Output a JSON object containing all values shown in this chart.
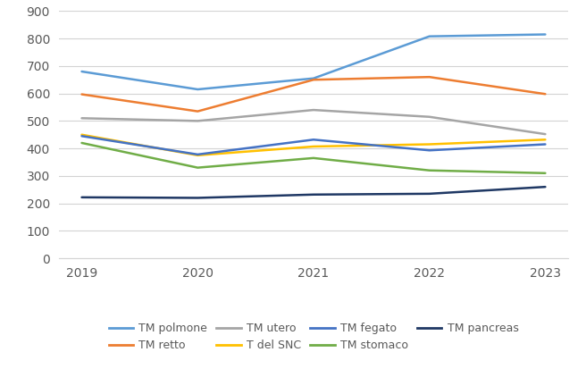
{
  "years": [
    2019,
    2020,
    2021,
    2022,
    2023
  ],
  "series": {
    "TM polmone": {
      "values": [
        680,
        615,
        655,
        808,
        815
      ],
      "color": "#5B9BD5",
      "linewidth": 1.8
    },
    "TM retto": {
      "values": [
        597,
        535,
        650,
        660,
        598
      ],
      "color": "#ED7D31",
      "linewidth": 1.8
    },
    "TM utero": {
      "values": [
        510,
        500,
        540,
        515,
        452
      ],
      "color": "#A5A5A5",
      "linewidth": 1.8
    },
    "T del SNC": {
      "values": [
        450,
        375,
        407,
        415,
        432
      ],
      "color": "#FFC000",
      "linewidth": 1.8
    },
    "TM fegato": {
      "values": [
        445,
        378,
        432,
        393,
        415
      ],
      "color": "#4472C4",
      "linewidth": 1.8
    },
    "TM stomaco": {
      "values": [
        420,
        330,
        365,
        320,
        310
      ],
      "color": "#70AD47",
      "linewidth": 1.8
    },
    "TM pancreas": {
      "values": [
        222,
        220,
        232,
        235,
        260
      ],
      "color": "#1F3864",
      "linewidth": 1.8
    }
  },
  "ylim": [
    0,
    900
  ],
  "yticks": [
    0,
    100,
    200,
    300,
    400,
    500,
    600,
    700,
    800,
    900
  ],
  "xticks": [
    2019,
    2020,
    2021,
    2022,
    2023
  ],
  "grid_color": "#D3D3D3",
  "background_color": "#FFFFFF",
  "legend_order": [
    "TM polmone",
    "TM retto",
    "TM utero",
    "T del SNC",
    "TM fegato",
    "TM stomaco",
    "TM pancreas"
  ],
  "legend_ncol": 4,
  "tick_fontsize": 10,
  "legend_fontsize": 9
}
